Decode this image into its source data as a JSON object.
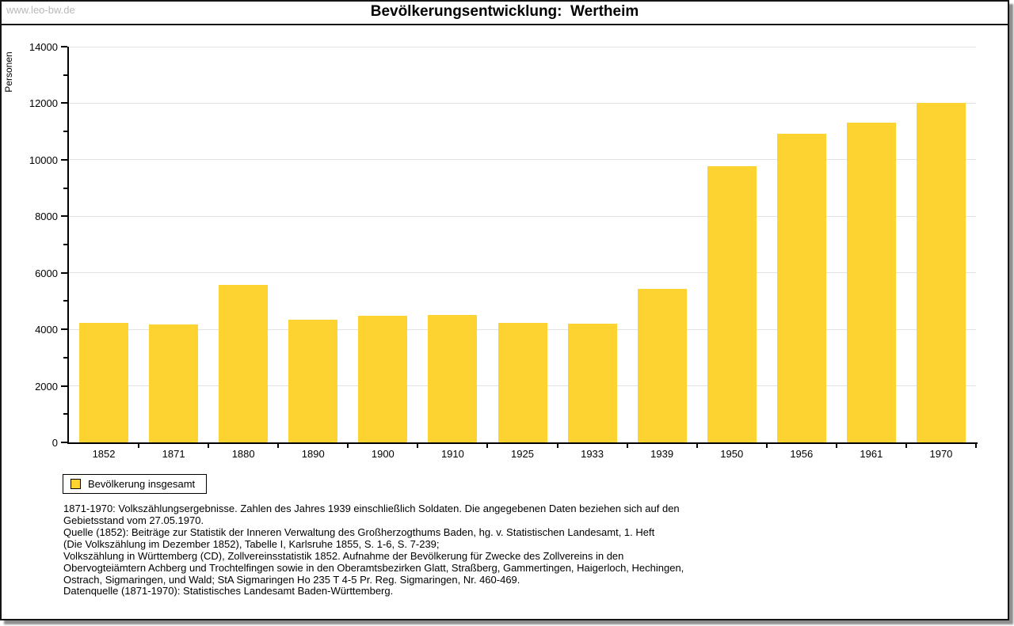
{
  "watermark": "www.leo-bw.de",
  "chart_data": {
    "type": "bar",
    "title": "Bevölkerungsentwicklung:  Wertheim",
    "ylabel": "Personen",
    "categories": [
      "1852",
      "1871",
      "1880",
      "1890",
      "1900",
      "1910",
      "1925",
      "1933",
      "1939",
      "1950",
      "1956",
      "1961",
      "1970"
    ],
    "values": [
      4230,
      4170,
      5580,
      4350,
      4490,
      4520,
      4240,
      4200,
      5420,
      9770,
      10930,
      11310,
      12020
    ],
    "ylim": [
      0,
      14000
    ],
    "ytick_major": 2000,
    "ytick_minor": 1000,
    "grid": "horizontal",
    "legend_position": "bottom-left",
    "bar_color": "#FCD330"
  },
  "legend": {
    "label": "Bevölkerung insgesamt"
  },
  "footnotes": [
    "1871-1970: Volkszählungsergebnisse. Zahlen des Jahres 1939 einschließlich Soldaten. Die angegebenen Daten beziehen sich auf den",
    "Gebietsstand vom 27.05.1970.",
    "Quelle (1852): Beiträge zur Statistik der Inneren Verwaltung des Großherzogthums Baden, hg. v. Statistischen Landesamt, 1. Heft",
    "(Die Volkszählung im Dezember 1852), Tabelle I, Karlsruhe 1855, S. 1-6, S. 7-239;",
    "Volkszählung in Württemberg (CD), Zollvereinsstatistik 1852. Aufnahme der Bevölkerung für Zwecke des Zollvereins in den",
    "Obervogteiämtern Achberg und Trochtelfingen sowie in den Oberamtsbezirken Glatt, Straßberg, Gammertingen, Haigerloch, Hechingen,",
    "Ostrach, Sigmaringen, und Wald; StA Sigmaringen Ho 235 T 4-5 Pr. Reg. Sigmaringen, Nr. 460-469."
  ],
  "datasource": "Datenquelle (1871-1970): Statistisches Landesamt Baden-Württemberg.",
  "colors": {
    "bar": "#FCD330",
    "gridline": "#E2E2E2",
    "axis": "#000000",
    "watermark": "#B8B8B8",
    "frame": "#141414",
    "shadow": "#8E8E8E"
  }
}
